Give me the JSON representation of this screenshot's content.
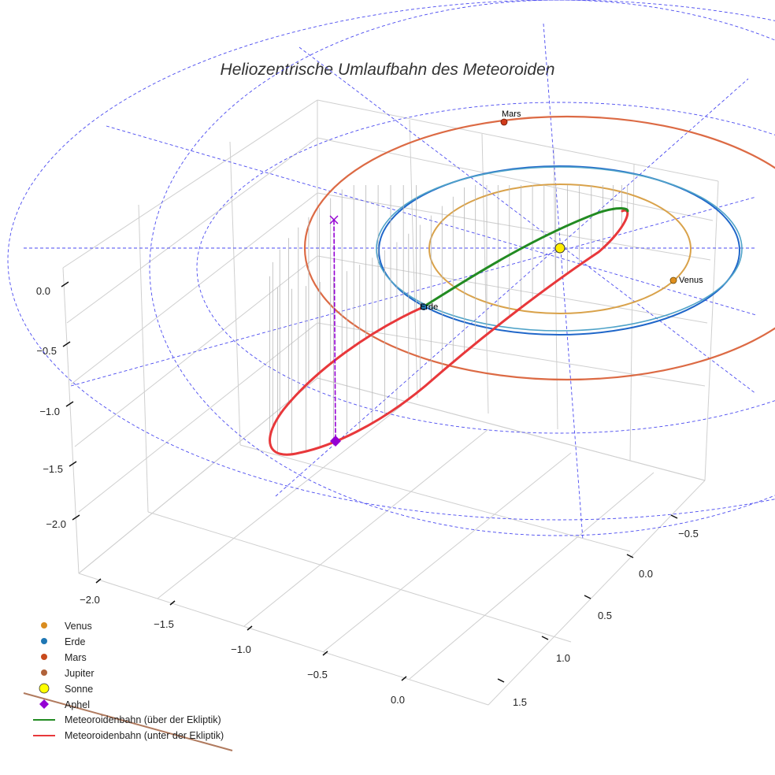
{
  "chart_data": {
    "type": "3d-orbit",
    "title": "Heliozentrische Umlaufbahn des Meteoroiden",
    "z_ticks": [
      "0.0",
      "−0.5",
      "−1.0",
      "−1.5",
      "−2.0"
    ],
    "x_ticks": [
      "−2.0",
      "−1.5",
      "−1.0",
      "−0.5",
      "0.0"
    ],
    "y_ticks": [
      "−0.5",
      "0.0",
      "0.5",
      "1.0",
      "1.5"
    ],
    "grid": true,
    "bodies": [
      {
        "name": "Venus",
        "semi_major_axis_au": 0.72,
        "color": "#d98c1f"
      },
      {
        "name": "Erde",
        "semi_major_axis_au": 1.0,
        "color": "#1f77b4"
      },
      {
        "name": "Mars",
        "semi_major_axis_au": 1.52,
        "color": "#d03a1a"
      },
      {
        "name": "Jupiter",
        "semi_major_axis_au": 5.2,
        "color": "#b0623a"
      },
      {
        "name": "Sonne",
        "semi_major_axis_au": 0,
        "color": "#ffee00"
      }
    ],
    "point_labels": [
      "Venus",
      "Erde",
      "Mars"
    ],
    "legend": {
      "position": "bottom-left",
      "entries": [
        {
          "label": "Venus",
          "marker": "circle",
          "color": "#d98c1f"
        },
        {
          "label": "Erde",
          "marker": "circle",
          "color": "#1f77b4"
        },
        {
          "label": "Mars",
          "marker": "circle",
          "color": "#c84a1c"
        },
        {
          "label": "Jupiter",
          "marker": "circle",
          "color": "#b0623a"
        },
        {
          "label": "Sonne",
          "marker": "circle-large",
          "color": "#ffff00"
        },
        {
          "label": "Aphel",
          "marker": "diamond",
          "color": "#9400d3"
        },
        {
          "label": "Meteoroidenbahn (über der Ekliptik)",
          "marker": "line",
          "color": "#228b22"
        },
        {
          "label": "Meteoroidenbahn (unter der Ekliptik)",
          "marker": "line",
          "color": "#e8383b"
        }
      ]
    },
    "series_colors": {
      "meteoroid_above": "#228b22",
      "meteoroid_below": "#e8383b",
      "aphel": "#9400d3",
      "helper_lines": "#4a4af0",
      "venus_orbit": "#d9a24a",
      "earth_orbit": "#1f66c9",
      "earth_orbit_2": "#4fa3c8",
      "mars_orbit": "#dc6a44",
      "jupiter_orbit": "#b07a5e"
    }
  }
}
